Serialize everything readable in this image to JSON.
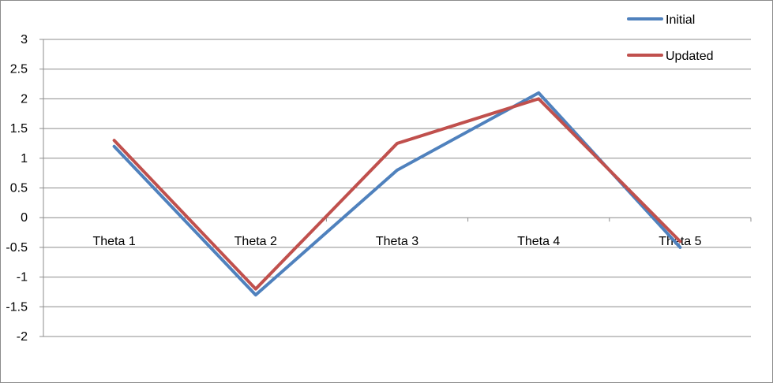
{
  "chart_data": {
    "type": "line",
    "title": "",
    "xlabel": "",
    "ylabel": "",
    "categories": [
      "Theta 1",
      "Theta 2",
      "Theta 3",
      "Theta 4",
      "Theta 5"
    ],
    "ylim": [
      -2,
      3
    ],
    "yticks": [
      3,
      2.5,
      2,
      1.5,
      1,
      0.5,
      0,
      -0.5,
      -1,
      -1.5,
      -2
    ],
    "grid": true,
    "legend_position": "top-right",
    "series": [
      {
        "name": "Initial",
        "color": "#4f81bd",
        "values": [
          1.2,
          -1.3,
          0.8,
          2.1,
          -0.5
        ]
      },
      {
        "name": "Updated",
        "color": "#c0504d",
        "values": [
          1.3,
          -1.2,
          1.25,
          2.0,
          -0.4
        ]
      }
    ]
  }
}
